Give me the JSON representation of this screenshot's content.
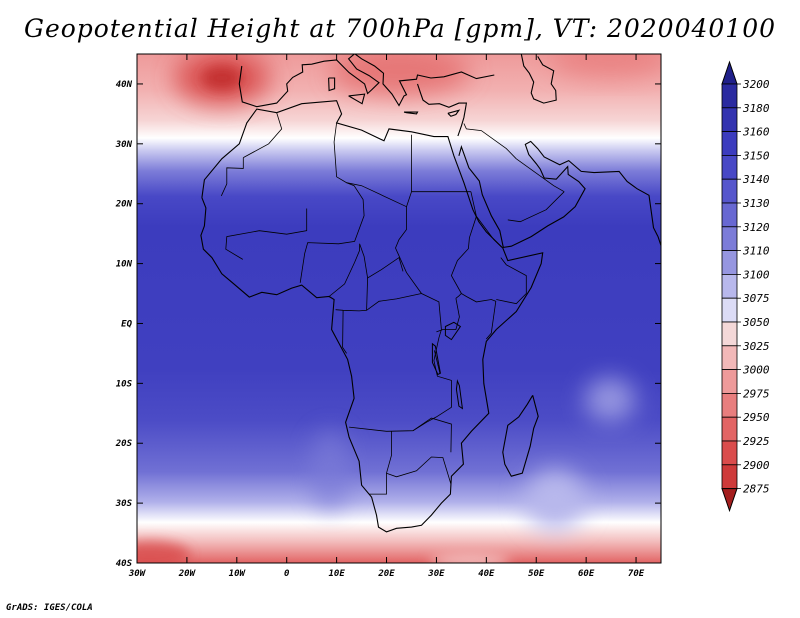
{
  "title": "Geopotential Height at 700hPa [gpm], VT: 2020040100",
  "credit": "GrADS: IGES/COLA",
  "map": {
    "projection": "latlon",
    "lon_range": [
      -30,
      75
    ],
    "lat_range": [
      -40,
      45
    ],
    "lat_ticks": [
      {
        "value": 40,
        "label": "40N"
      },
      {
        "value": 30,
        "label": "30N"
      },
      {
        "value": 20,
        "label": "20N"
      },
      {
        "value": 10,
        "label": "10N"
      },
      {
        "value": 0,
        "label": "EQ"
      },
      {
        "value": -10,
        "label": "10S"
      },
      {
        "value": -20,
        "label": "20S"
      },
      {
        "value": -30,
        "label": "30S"
      },
      {
        "value": -40,
        "label": "40S"
      }
    ],
    "lon_ticks": [
      {
        "value": -30,
        "label": "30W"
      },
      {
        "value": -20,
        "label": "20W"
      },
      {
        "value": -10,
        "label": "10W"
      },
      {
        "value": 0,
        "label": "0"
      },
      {
        "value": 10,
        "label": "10E"
      },
      {
        "value": 20,
        "label": "20E"
      },
      {
        "value": 30,
        "label": "30E"
      },
      {
        "value": 40,
        "label": "40E"
      },
      {
        "value": 50,
        "label": "50E"
      },
      {
        "value": 60,
        "label": "60E"
      },
      {
        "value": 70,
        "label": "70E"
      }
    ]
  },
  "colorbar": {
    "levels": [
      "3200",
      "3180",
      "3160",
      "3150",
      "3140",
      "3130",
      "3120",
      "3110",
      "3100",
      "3075",
      "3050",
      "3025",
      "3000",
      "2975",
      "2950",
      "2925",
      "2900",
      "2875"
    ],
    "colors": [
      "#2a2aa0",
      "#3333b0",
      "#3c3cbe",
      "#4848c6",
      "#5656cc",
      "#6868d2",
      "#7c7cd8",
      "#9696e0",
      "#b8b8ec",
      "#dcdcf6",
      "#f4d8d8",
      "#f2b8b8",
      "#ee9a9a",
      "#e87e7e",
      "#e26464",
      "#da4c4c",
      "#ce3a3a",
      "#b82828"
    ],
    "top_arrow_color": "#20208a",
    "bottom_arrow_color": "#a41e1e"
  }
}
